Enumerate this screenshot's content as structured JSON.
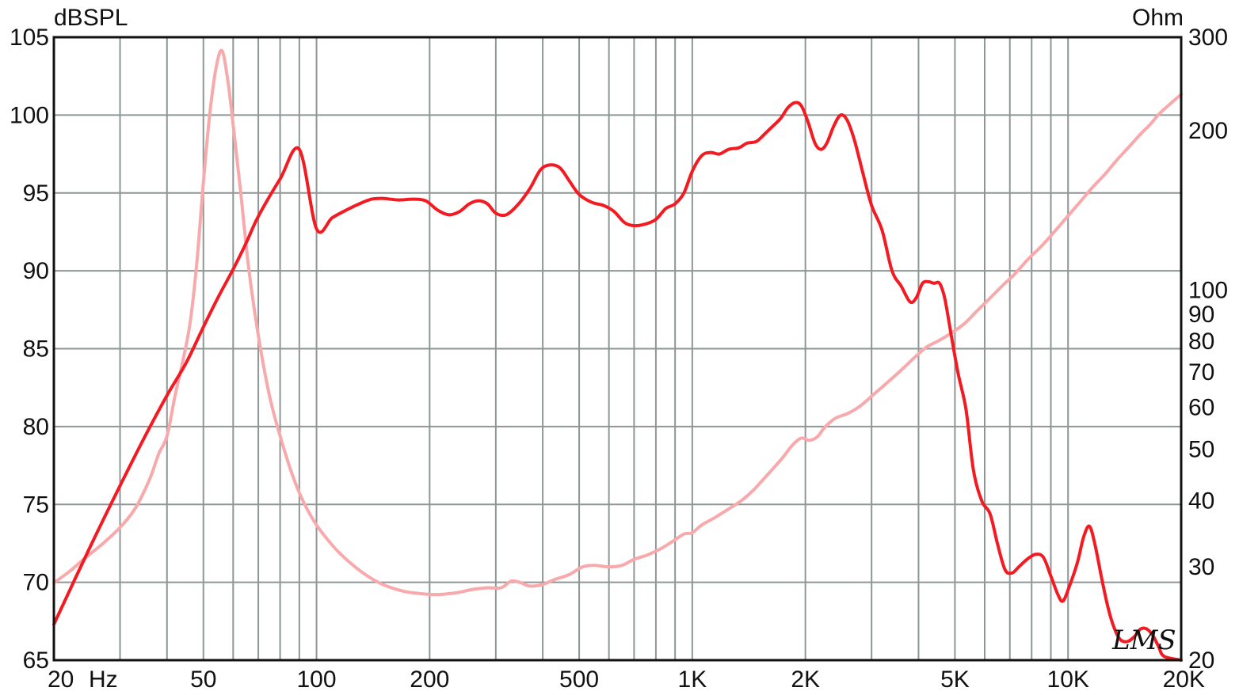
{
  "chart_data": {
    "type": "line",
    "x_scale": "log",
    "x_range": [
      20,
      20000
    ],
    "y_left": {
      "unit": "dBSPL",
      "range": [
        65,
        105
      ],
      "ticks": [
        105,
        100,
        95,
        90,
        85,
        80,
        75,
        70,
        65
      ]
    },
    "y_right": {
      "unit": "Ohm",
      "scale": "log",
      "range": [
        20,
        300
      ],
      "ticks": [
        {
          "value": 300,
          "label": "300"
        },
        {
          "value": 200,
          "label": "200"
        },
        {
          "value": 100,
          "label": "100"
        },
        {
          "value": 90,
          "label": "90"
        },
        {
          "value": 80,
          "label": "80"
        },
        {
          "value": 70,
          "label": "70"
        },
        {
          "value": 60,
          "label": "60"
        },
        {
          "value": 50,
          "label": "50"
        },
        {
          "value": 40,
          "label": "40"
        },
        {
          "value": 30,
          "label": "30"
        },
        {
          "value": 20,
          "label": "20"
        }
      ]
    },
    "x_ticks": [
      {
        "value": 20,
        "label": "20"
      },
      {
        "value": 50,
        "label": "50"
      },
      {
        "value": 100,
        "label": "100"
      },
      {
        "value": 200,
        "label": "200"
      },
      {
        "value": 500,
        "label": "500"
      },
      {
        "value": 1000,
        "label": "1K"
      },
      {
        "value": 2000,
        "label": "2K"
      },
      {
        "value": 5000,
        "label": "5K"
      },
      {
        "value": 10000,
        "label": "10K"
      },
      {
        "value": 20000,
        "label": "20K"
      }
    ],
    "x_unit_label": "Hz",
    "grid": true,
    "logo_text": "LMS",
    "series": [
      {
        "axis": "left",
        "color": "#f41a22",
        "points": [
          [
            20,
            67.3
          ],
          [
            25,
            72.3
          ],
          [
            30,
            76.2
          ],
          [
            35,
            79.4
          ],
          [
            40,
            82.0
          ],
          [
            45,
            84.1
          ],
          [
            50,
            86.4
          ],
          [
            55,
            88.4
          ],
          [
            60,
            90.1
          ],
          [
            65,
            91.8
          ],
          [
            70,
            93.5
          ],
          [
            80,
            95.9
          ],
          [
            90,
            97.8
          ],
          [
            100,
            92.7
          ],
          [
            110,
            93.4
          ],
          [
            120,
            93.9
          ],
          [
            130,
            94.3
          ],
          [
            140,
            94.6
          ],
          [
            150,
            94.65
          ],
          [
            165,
            94.55
          ],
          [
            180,
            94.6
          ],
          [
            195,
            94.5
          ],
          [
            210,
            93.9
          ],
          [
            225,
            93.6
          ],
          [
            240,
            93.8
          ],
          [
            255,
            94.3
          ],
          [
            270,
            94.5
          ],
          [
            285,
            94.3
          ],
          [
            300,
            93.7
          ],
          [
            320,
            93.6
          ],
          [
            345,
            94.3
          ],
          [
            370,
            95.3
          ],
          [
            395,
            96.5
          ],
          [
            420,
            96.8
          ],
          [
            445,
            96.6
          ],
          [
            470,
            95.8
          ],
          [
            500,
            94.9
          ],
          [
            540,
            94.4
          ],
          [
            580,
            94.2
          ],
          [
            620,
            93.8
          ],
          [
            660,
            93.1
          ],
          [
            700,
            92.9
          ],
          [
            750,
            93.0
          ],
          [
            800,
            93.3
          ],
          [
            850,
            94.0
          ],
          [
            900,
            94.3
          ],
          [
            950,
            95.0
          ],
          [
            1000,
            96.4
          ],
          [
            1060,
            97.4
          ],
          [
            1120,
            97.6
          ],
          [
            1180,
            97.5
          ],
          [
            1250,
            97.8
          ],
          [
            1330,
            97.9
          ],
          [
            1400,
            98.2
          ],
          [
            1480,
            98.3
          ],
          [
            1560,
            98.8
          ],
          [
            1640,
            99.3
          ],
          [
            1720,
            99.8
          ],
          [
            1800,
            100.5
          ],
          [
            1880,
            100.8
          ],
          [
            1950,
            100.6
          ],
          [
            2030,
            99.6
          ],
          [
            2120,
            98.2
          ],
          [
            2200,
            97.8
          ],
          [
            2280,
            98.2
          ],
          [
            2380,
            99.3
          ],
          [
            2480,
            100.0
          ],
          [
            2580,
            99.7
          ],
          [
            2700,
            98.4
          ],
          [
            2850,
            96.2
          ],
          [
            3000,
            94.2
          ],
          [
            3200,
            92.6
          ],
          [
            3400,
            90.0
          ],
          [
            3600,
            89.0
          ],
          [
            3800,
            88.0
          ],
          [
            3950,
            88.3
          ],
          [
            4100,
            89.2
          ],
          [
            4250,
            89.3
          ],
          [
            4400,
            89.2
          ],
          [
            4550,
            89.2
          ],
          [
            4700,
            88.2
          ],
          [
            4900,
            85.7
          ],
          [
            5100,
            83.4
          ],
          [
            5350,
            81.1
          ],
          [
            5600,
            77.2
          ],
          [
            5900,
            75.2
          ],
          [
            6200,
            74.4
          ],
          [
            6500,
            72.4
          ],
          [
            6800,
            70.8
          ],
          [
            7100,
            70.6
          ],
          [
            7400,
            71.0
          ],
          [
            7800,
            71.5
          ],
          [
            8200,
            71.8
          ],
          [
            8600,
            71.6
          ],
          [
            9000,
            70.4
          ],
          [
            9400,
            69.2
          ],
          [
            9700,
            68.8
          ],
          [
            10100,
            69.8
          ],
          [
            10600,
            71.3
          ],
          [
            11000,
            72.9
          ],
          [
            11400,
            73.6
          ],
          [
            11800,
            72.4
          ],
          [
            12300,
            70.2
          ],
          [
            12800,
            68.3
          ],
          [
            13300,
            67.0
          ],
          [
            13800,
            66.3
          ],
          [
            14400,
            66.2
          ],
          [
            15000,
            66.5
          ],
          [
            15600,
            67.0
          ],
          [
            16200,
            67.0
          ],
          [
            16800,
            66.6
          ],
          [
            17400,
            65.9
          ],
          [
            18000,
            65.25
          ],
          [
            20000,
            65.0
          ]
        ]
      },
      {
        "axis": "right",
        "color": "#f7a9ab",
        "points": [
          [
            20,
            28.0
          ],
          [
            22,
            29.4
          ],
          [
            24,
            31.0
          ],
          [
            27,
            33.2
          ],
          [
            30,
            35.6
          ],
          [
            33,
            38.8
          ],
          [
            36,
            44.0
          ],
          [
            38,
            49.0
          ],
          [
            40,
            53.0
          ],
          [
            42,
            63.0
          ],
          [
            44,
            73.0
          ],
          [
            46,
            86.0
          ],
          [
            48,
            112.0
          ],
          [
            50,
            160.0
          ],
          [
            52,
            215.0
          ],
          [
            54,
            262.0
          ],
          [
            56,
            283.0
          ],
          [
            58,
            250.0
          ],
          [
            60,
            205.0
          ],
          [
            63,
            150.0
          ],
          [
            66,
            110.0
          ],
          [
            70,
            82.0
          ],
          [
            75,
            63.0
          ],
          [
            80,
            53.0
          ],
          [
            86,
            45.0
          ],
          [
            92,
            40.0
          ],
          [
            100,
            36.0
          ],
          [
            110,
            33.0
          ],
          [
            120,
            31.0
          ],
          [
            135,
            29.0
          ],
          [
            150,
            27.8
          ],
          [
            170,
            27.0
          ],
          [
            190,
            26.7
          ],
          [
            210,
            26.6
          ],
          [
            235,
            26.8
          ],
          [
            260,
            27.2
          ],
          [
            285,
            27.4
          ],
          [
            310,
            27.4
          ],
          [
            330,
            28.2
          ],
          [
            350,
            28.0
          ],
          [
            370,
            27.6
          ],
          [
            400,
            27.8
          ],
          [
            430,
            28.4
          ],
          [
            470,
            29.0
          ],
          [
            510,
            30.0
          ],
          [
            550,
            30.2
          ],
          [
            600,
            30.0
          ],
          [
            650,
            30.2
          ],
          [
            700,
            31.0
          ],
          [
            760,
            31.6
          ],
          [
            820,
            32.4
          ],
          [
            880,
            33.4
          ],
          [
            950,
            34.6
          ],
          [
            1000,
            34.8
          ],
          [
            1060,
            36.0
          ],
          [
            1150,
            37.2
          ],
          [
            1250,
            38.6
          ],
          [
            1350,
            40.0
          ],
          [
            1450,
            41.8
          ],
          [
            1550,
            44.0
          ],
          [
            1650,
            46.2
          ],
          [
            1750,
            48.5
          ],
          [
            1850,
            51.0
          ],
          [
            1950,
            52.5
          ],
          [
            2050,
            52.0
          ],
          [
            2150,
            52.8
          ],
          [
            2250,
            55.0
          ],
          [
            2400,
            57.2
          ],
          [
            2600,
            58.5
          ],
          [
            2800,
            60.4
          ],
          [
            3000,
            63.0
          ],
          [
            3300,
            66.8
          ],
          [
            3600,
            70.6
          ],
          [
            3900,
            74.5
          ],
          [
            4200,
            78.0
          ],
          [
            4500,
            80.0
          ],
          [
            4900,
            83.0
          ],
          [
            5300,
            86.4
          ],
          [
            5700,
            91.0
          ],
          [
            6200,
            96.5
          ],
          [
            6700,
            102.0
          ],
          [
            7200,
            107.0
          ],
          [
            7800,
            114.0
          ],
          [
            8500,
            121.0
          ],
          [
            9300,
            130.0
          ],
          [
            10000,
            138.0
          ],
          [
            10800,
            147.0
          ],
          [
            11600,
            156.0
          ],
          [
            12500,
            165.0
          ],
          [
            13500,
            176.0
          ],
          [
            14500,
            186.0
          ],
          [
            15500,
            196.0
          ],
          [
            16500,
            205.0
          ],
          [
            17500,
            215.0
          ],
          [
            18500,
            223.0
          ],
          [
            20000,
            234.0
          ]
        ]
      }
    ]
  }
}
